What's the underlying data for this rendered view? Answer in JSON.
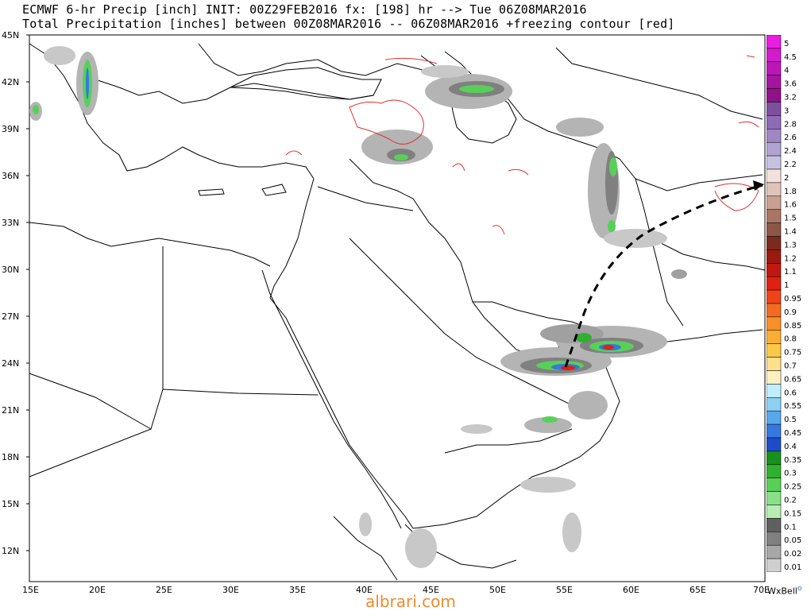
{
  "header": {
    "line1": "ECMWF 6-hr Precip [inch] INIT: 00Z29FEB2016 fx: [198] hr --> Tue 06Z08MAR2016",
    "line2": "Total Precipitation [inches] between 00Z08MAR2016 -- 06Z08MAR2016 +freezing contour [red]"
  },
  "axes": {
    "lat_labels": [
      "45N",
      "42N",
      "39N",
      "36N",
      "33N",
      "30N",
      "27N",
      "24N",
      "21N",
      "18N",
      "15N",
      "12N"
    ],
    "lon_labels": [
      "15E",
      "20E",
      "25E",
      "30E",
      "35E",
      "40E",
      "45E",
      "50E",
      "55E",
      "60E",
      "65E",
      "70E"
    ]
  },
  "scale": {
    "labels": [
      "5",
      "4.5",
      "4",
      "3.6",
      "3.2",
      "3",
      "2.8",
      "2.6",
      "2.4",
      "2.2",
      "2",
      "1.8",
      "1.6",
      "1.5",
      "1.4",
      "1.3",
      "1.2",
      "1.1",
      "1",
      "0.95",
      "0.9",
      "0.85",
      "0.8",
      "0.75",
      "0.7",
      "0.65",
      "0.6",
      "0.55",
      "0.5",
      "0.45",
      "0.4",
      "0.35",
      "0.3",
      "0.25",
      "0.2",
      "0.15",
      "0.1",
      "0.05",
      "0.02",
      "0.01"
    ],
    "colors": [
      "#e81ee0",
      "#d21bcc",
      "#bb17b5",
      "#a5149f",
      "#901189",
      "#7f4fa0",
      "#8e6bb5",
      "#9f86c4",
      "#b1a3d2",
      "#c8c2e2",
      "#f3e2dc",
      "#e0c4b8",
      "#c9a08f",
      "#a97565",
      "#8e5646",
      "#7a2a1e",
      "#9a1a10",
      "#c01810",
      "#e02010",
      "#f04418",
      "#f46a20",
      "#f7902a",
      "#f9ae34",
      "#fbc84a",
      "#fde08c",
      "#fdf0c0",
      "#c0eefc",
      "#8ed0f4",
      "#58a8ec",
      "#3478e0",
      "#1e4cc8",
      "#18901c",
      "#30b030",
      "#58d058",
      "#88e088",
      "#b8ecb4",
      "#606060",
      "#808080",
      "#a8a8a8",
      "#d0d0d0"
    ]
  },
  "credit": "WxBell",
  "watermark": "albrari.com"
}
